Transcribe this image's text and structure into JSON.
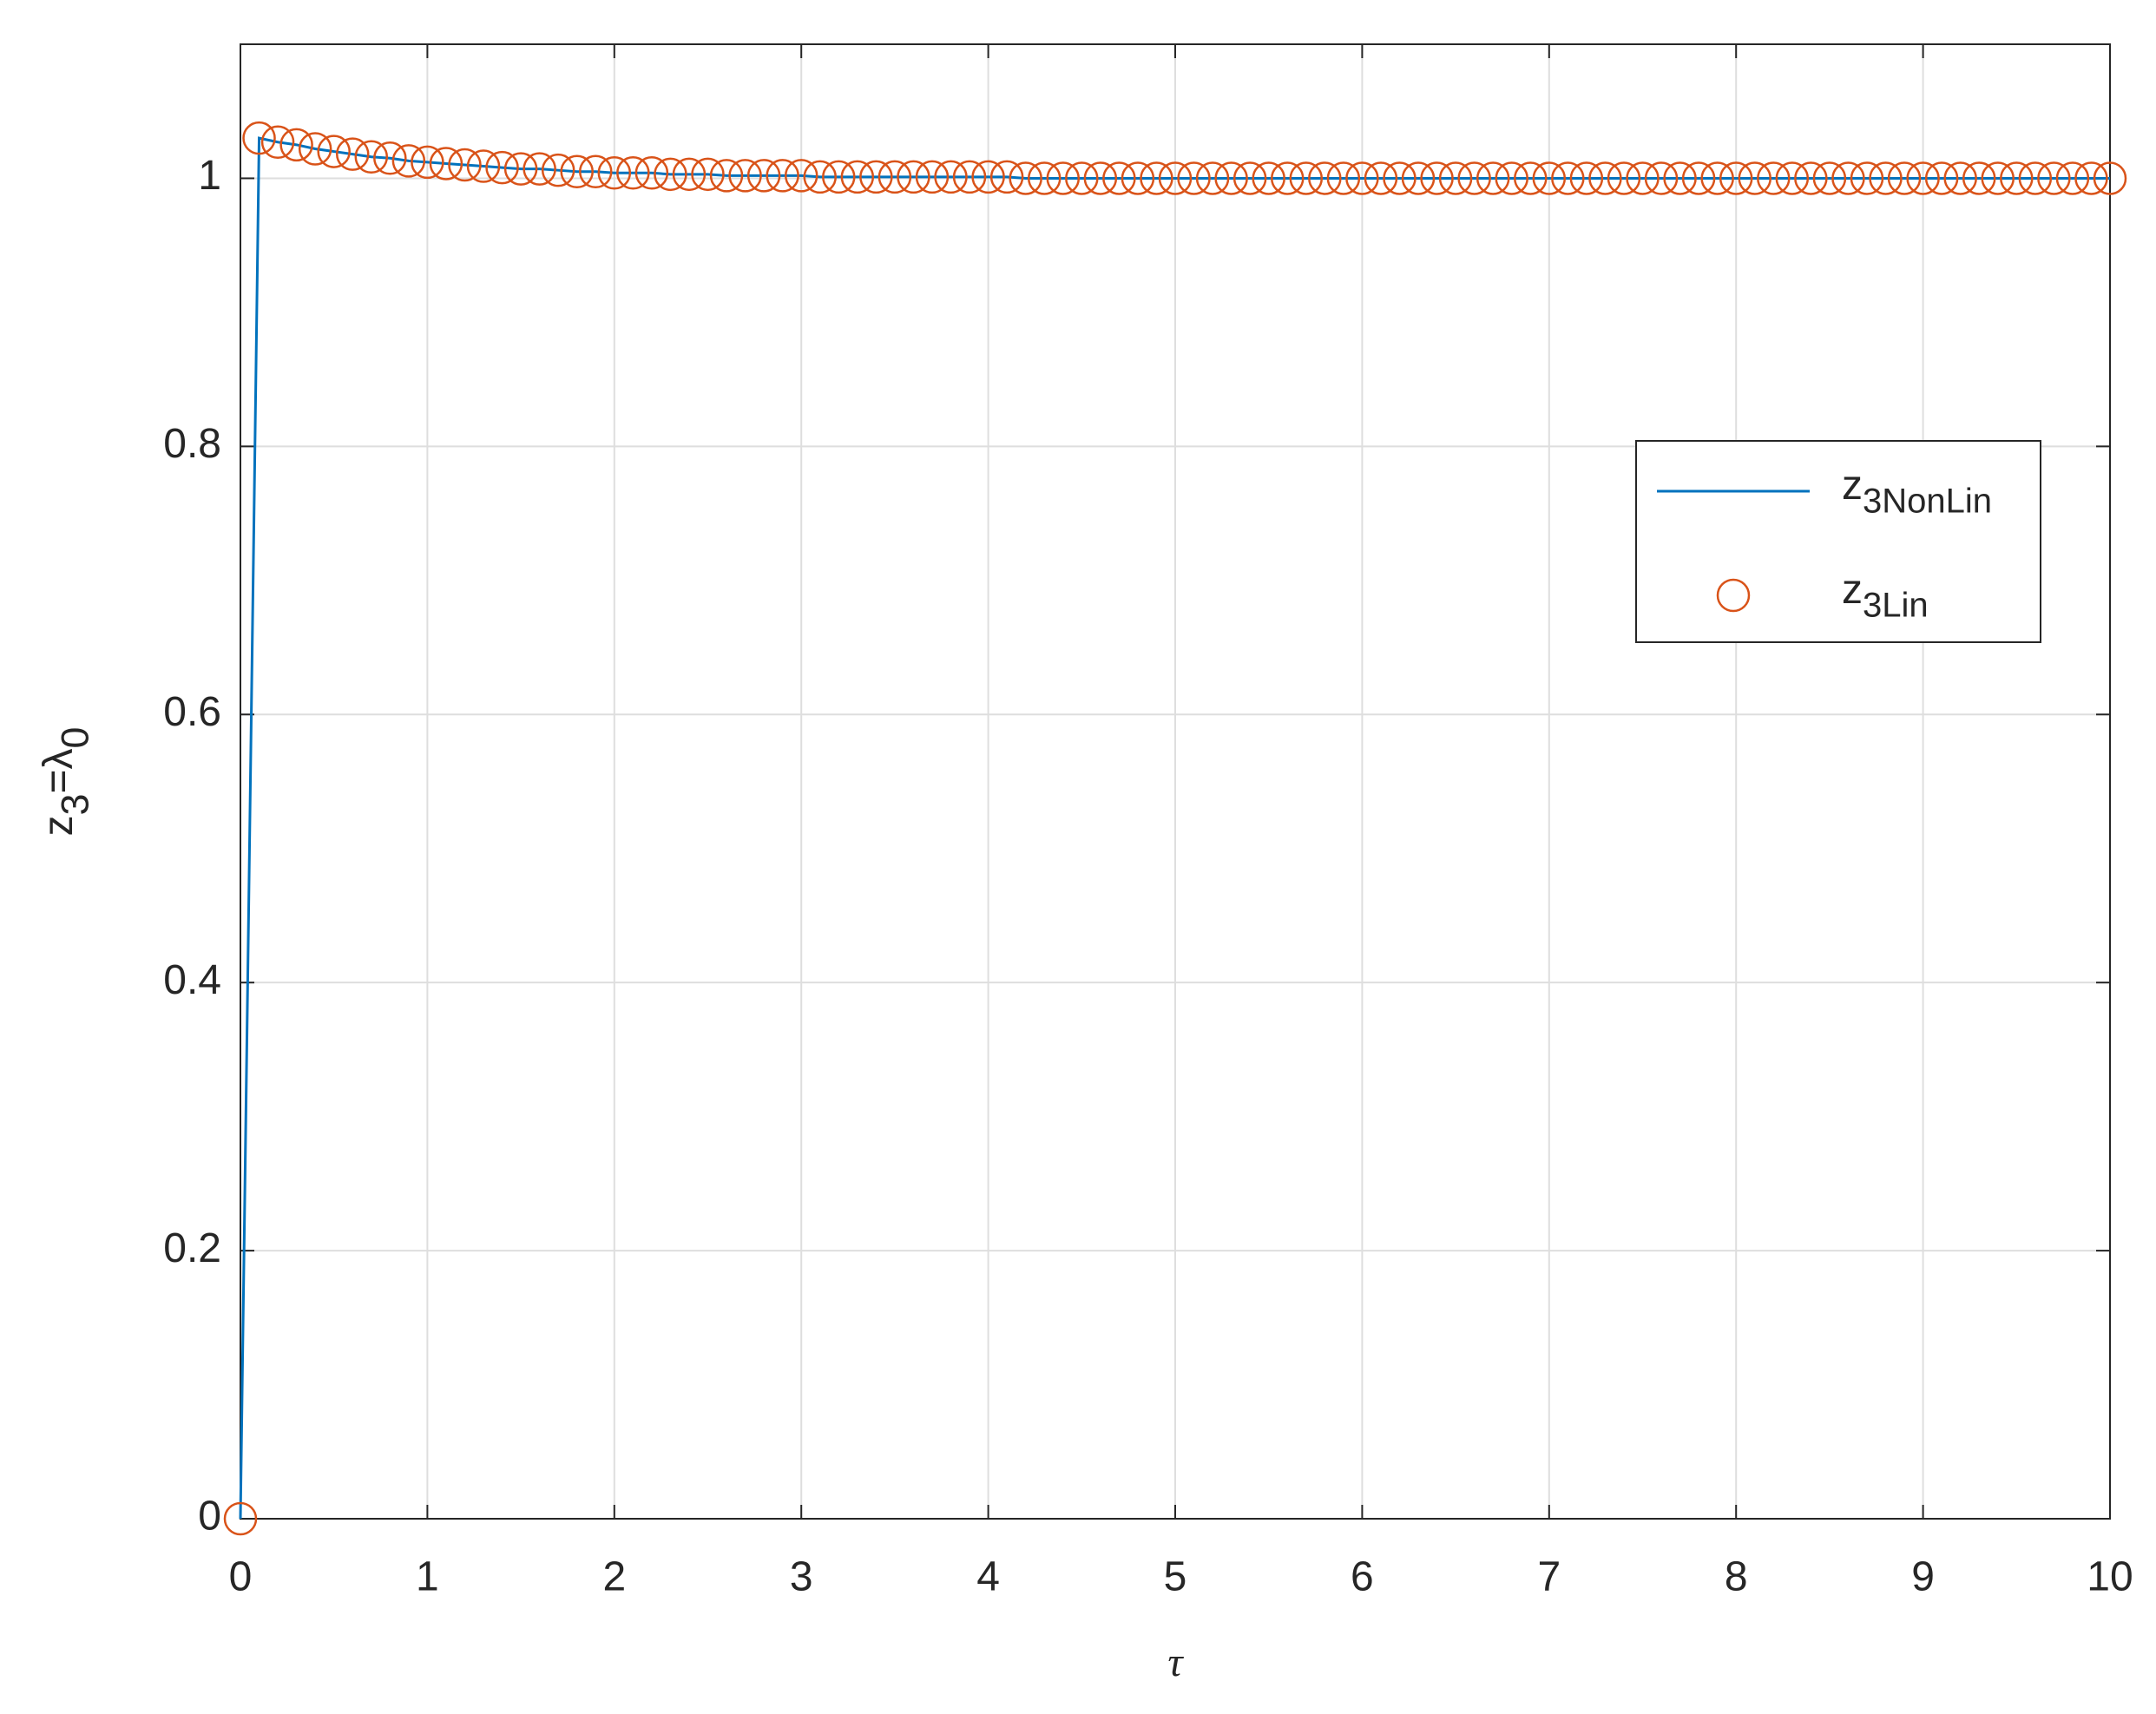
{
  "chart_data": {
    "type": "line",
    "xlabel": "τ",
    "ylabel": "z3=λ0",
    "x": [
      0,
      0.1,
      0.2,
      0.3,
      0.4,
      0.5,
      0.6,
      0.7,
      0.8,
      0.9,
      1,
      1.1,
      1.2,
      1.3,
      1.4,
      1.5,
      1.6,
      1.7,
      1.8,
      1.9,
      2,
      2.1,
      2.2,
      2.3,
      2.4,
      2.5,
      2.6,
      2.7,
      2.8,
      2.9,
      3,
      3.1,
      3.2,
      3.3,
      3.4,
      3.5,
      3.6,
      3.7,
      3.8,
      3.9,
      4,
      4.1,
      4.2,
      4.3,
      4.4,
      4.5,
      4.6,
      4.7,
      4.8,
      4.9,
      5,
      5.1,
      5.2,
      5.3,
      5.4,
      5.5,
      5.6,
      5.7,
      5.8,
      5.9,
      6,
      6.1,
      6.2,
      6.3,
      6.4,
      6.5,
      6.6,
      6.7,
      6.8,
      6.9,
      7,
      7.1,
      7.2,
      7.3,
      7.4,
      7.5,
      7.6,
      7.7,
      7.8,
      7.9,
      8,
      8.1,
      8.2,
      8.3,
      8.4,
      8.5,
      8.6,
      8.7,
      8.8,
      8.9,
      9,
      9.1,
      9.2,
      9.3,
      9.4,
      9.5,
      9.6,
      9.7,
      9.8,
      9.9,
      10
    ],
    "series": [
      {
        "name": "z3NonLin",
        "color": "#0072bd",
        "style": "line",
        "values": [
          0,
          1.03,
          1.027,
          1.025,
          1.022,
          1.02,
          1.018,
          1.016,
          1.015,
          1.013,
          1.012,
          1.011,
          1.01,
          1.009,
          1.008,
          1.007,
          1.007,
          1.006,
          1.005,
          1.005,
          1.004,
          1.004,
          1.004,
          1.003,
          1.003,
          1.003,
          1.002,
          1.002,
          1.002,
          1.002,
          1.002,
          1.001,
          1.001,
          1.001,
          1.001,
          1.001,
          1.001,
          1.001,
          1.001,
          1.001,
          1.001,
          1.001,
          1.0,
          1.0,
          1.0,
          1.0,
          1.0,
          1.0,
          1.0,
          1.0,
          1.0,
          1.0,
          1.0,
          1.0,
          1.0,
          1.0,
          1.0,
          1.0,
          1.0,
          1.0,
          1.0,
          1.0,
          1.0,
          1.0,
          1.0,
          1.0,
          1.0,
          1.0,
          1.0,
          1.0,
          1.0,
          1.0,
          1.0,
          1.0,
          1.0,
          1.0,
          1.0,
          1.0,
          1.0,
          1.0,
          1.0,
          1.0,
          1.0,
          1.0,
          1.0,
          1.0,
          1.0,
          1.0,
          1.0,
          1.0,
          1.0,
          1.0,
          1.0,
          1.0,
          1.0,
          1.0,
          1.0,
          1.0,
          1.0,
          1.0,
          1.0
        ]
      },
      {
        "name": "z3Lin",
        "color": "#d95319",
        "style": "markers",
        "values": [
          0,
          1.03,
          1.027,
          1.025,
          1.022,
          1.02,
          1.018,
          1.016,
          1.015,
          1.013,
          1.012,
          1.011,
          1.01,
          1.009,
          1.008,
          1.007,
          1.007,
          1.006,
          1.005,
          1.005,
          1.004,
          1.004,
          1.004,
          1.003,
          1.003,
          1.003,
          1.002,
          1.002,
          1.002,
          1.002,
          1.002,
          1.001,
          1.001,
          1.001,
          1.001,
          1.001,
          1.001,
          1.001,
          1.001,
          1.001,
          1.001,
          1.001,
          1.0,
          1.0,
          1.0,
          1.0,
          1.0,
          1.0,
          1.0,
          1.0,
          1.0,
          1.0,
          1.0,
          1.0,
          1.0,
          1.0,
          1.0,
          1.0,
          1.0,
          1.0,
          1.0,
          1.0,
          1.0,
          1.0,
          1.0,
          1.0,
          1.0,
          1.0,
          1.0,
          1.0,
          1.0,
          1.0,
          1.0,
          1.0,
          1.0,
          1.0,
          1.0,
          1.0,
          1.0,
          1.0,
          1.0,
          1.0,
          1.0,
          1.0,
          1.0,
          1.0,
          1.0,
          1.0,
          1.0,
          1.0,
          1.0,
          1.0,
          1.0,
          1.0,
          1.0,
          1.0,
          1.0,
          1.0,
          1.0,
          1.0,
          1.0
        ]
      }
    ],
    "xlim": [
      0,
      10
    ],
    "xticks": [
      0,
      1,
      2,
      3,
      4,
      5,
      6,
      7,
      8,
      9,
      10
    ],
    "ylim": [
      0,
      1.1
    ],
    "yticks": [
      0,
      0.2,
      0.4,
      0.6,
      0.8,
      1
    ],
    "grid": true,
    "legend": "upper-right"
  }
}
